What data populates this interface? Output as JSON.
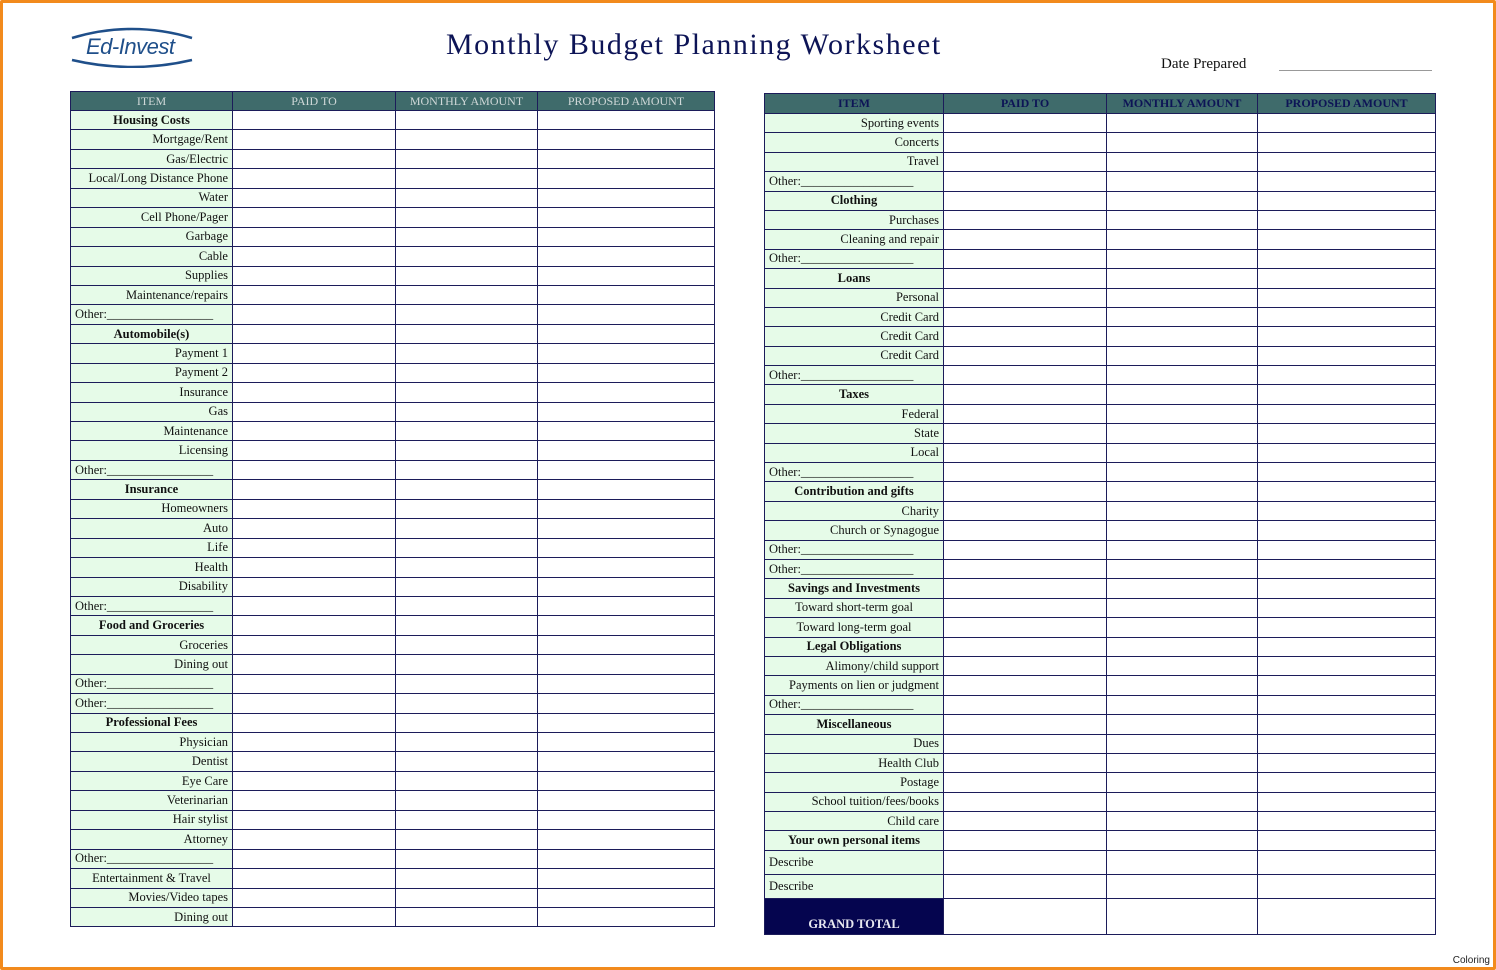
{
  "logo_text": "Ed-Invest",
  "title": "Monthly Budget Planning Worksheet",
  "date_prepared_label": "Date Prepared",
  "watermark": "Coloring",
  "colors": {
    "header": "#3f6b6b",
    "item_bg": "#e6fbe8",
    "border": "#1c1c5a",
    "grand_total": "#05054f",
    "frame": "#f28a1c"
  },
  "columns": [
    "ITEM",
    "PAID TO",
    "MONTHLY AMOUNT",
    "PROPOSED AMOUNT"
  ],
  "left_rows": [
    {
      "t": "s",
      "label": "Housing Costs"
    },
    {
      "t": "r",
      "label": "Mortgage/Rent"
    },
    {
      "t": "r",
      "label": "Gas/Electric"
    },
    {
      "t": "r",
      "label": "Local/Long Distance Phone"
    },
    {
      "t": "r",
      "label": "Water"
    },
    {
      "t": "r",
      "label": "Cell Phone/Pager"
    },
    {
      "t": "r",
      "label": "Garbage"
    },
    {
      "t": "r",
      "label": "Cable"
    },
    {
      "t": "r",
      "label": "Supplies"
    },
    {
      "t": "r",
      "label": "Maintenance/repairs"
    },
    {
      "t": "o",
      "label": "Other:_________________"
    },
    {
      "t": "s",
      "label": "Automobile(s)"
    },
    {
      "t": "r",
      "label": "Payment 1"
    },
    {
      "t": "r",
      "label": "Payment 2"
    },
    {
      "t": "r",
      "label": "Insurance"
    },
    {
      "t": "r",
      "label": "Gas"
    },
    {
      "t": "r",
      "label": "Maintenance"
    },
    {
      "t": "r",
      "label": "Licensing"
    },
    {
      "t": "o",
      "label": "Other:_________________"
    },
    {
      "t": "s",
      "label": "Insurance"
    },
    {
      "t": "r",
      "label": "Homeowners"
    },
    {
      "t": "r",
      "label": "Auto"
    },
    {
      "t": "r",
      "label": "Life"
    },
    {
      "t": "r",
      "label": "Health"
    },
    {
      "t": "r",
      "label": "Disability"
    },
    {
      "t": "o",
      "label": "Other:_________________"
    },
    {
      "t": "s",
      "label": "Food and Groceries"
    },
    {
      "t": "r",
      "label": "Groceries"
    },
    {
      "t": "r",
      "label": "Dining out"
    },
    {
      "t": "o",
      "label": "Other:_________________"
    },
    {
      "t": "o",
      "label": "Other:_________________"
    },
    {
      "t": "s",
      "label": "Professional Fees"
    },
    {
      "t": "r",
      "label": "Physician"
    },
    {
      "t": "r",
      "label": "Dentist"
    },
    {
      "t": "r",
      "label": "Eye Care"
    },
    {
      "t": "r",
      "label": "Veterinarian"
    },
    {
      "t": "r",
      "label": "Hair stylist"
    },
    {
      "t": "r",
      "label": "Attorney"
    },
    {
      "t": "o",
      "label": "Other:_________________"
    },
    {
      "t": "c",
      "label": "Entertainment & Travel"
    },
    {
      "t": "r",
      "label": "Movies/Video tapes"
    },
    {
      "t": "r",
      "label": "Dining out"
    }
  ],
  "right_rows": [
    {
      "t": "r",
      "label": "Sporting events"
    },
    {
      "t": "r",
      "label": "Concerts"
    },
    {
      "t": "r",
      "label": "Travel"
    },
    {
      "t": "o",
      "label": "Other:__________________"
    },
    {
      "t": "s",
      "label": "Clothing"
    },
    {
      "t": "r",
      "label": "Purchases"
    },
    {
      "t": "r",
      "label": "Cleaning and repair"
    },
    {
      "t": "o",
      "label": "Other:__________________"
    },
    {
      "t": "s",
      "label": "Loans"
    },
    {
      "t": "r",
      "label": "Personal"
    },
    {
      "t": "r",
      "label": "Credit Card"
    },
    {
      "t": "r",
      "label": "Credit Card"
    },
    {
      "t": "r",
      "label": "Credit Card"
    },
    {
      "t": "o",
      "label": "Other:__________________"
    },
    {
      "t": "s",
      "label": "Taxes"
    },
    {
      "t": "r",
      "label": "Federal"
    },
    {
      "t": "r",
      "label": "State"
    },
    {
      "t": "r",
      "label": "Local"
    },
    {
      "t": "o",
      "label": "Other:__________________"
    },
    {
      "t": "s",
      "label": "Contribution and gifts"
    },
    {
      "t": "r",
      "label": "Charity"
    },
    {
      "t": "r",
      "label": "Church or Synagogue"
    },
    {
      "t": "o",
      "label": "Other:__________________"
    },
    {
      "t": "o",
      "label": "Other:__________________"
    },
    {
      "t": "s",
      "label": "Savings and Investments"
    },
    {
      "t": "c",
      "label": "Toward short-term goal"
    },
    {
      "t": "c",
      "label": "Toward long-term goal"
    },
    {
      "t": "s",
      "label": "Legal Obligations"
    },
    {
      "t": "r",
      "label": "Alimony/child support"
    },
    {
      "t": "r",
      "label": "Payments on lien or judgment"
    },
    {
      "t": "o",
      "label": "Other:__________________"
    },
    {
      "t": "s",
      "label": "Miscellaneous"
    },
    {
      "t": "r",
      "label": "Dues"
    },
    {
      "t": "r",
      "label": "Health Club"
    },
    {
      "t": "r",
      "label": "Postage"
    },
    {
      "t": "r",
      "label": "School tuition/fees/books"
    },
    {
      "t": "r",
      "label": "Child care"
    },
    {
      "t": "s",
      "label": "Your own personal items"
    },
    {
      "t": "l",
      "label": "Describe",
      "tall": true
    },
    {
      "t": "l",
      "label": "Describe",
      "tall": true
    }
  ],
  "grand_total_label": "GRAND TOTAL"
}
